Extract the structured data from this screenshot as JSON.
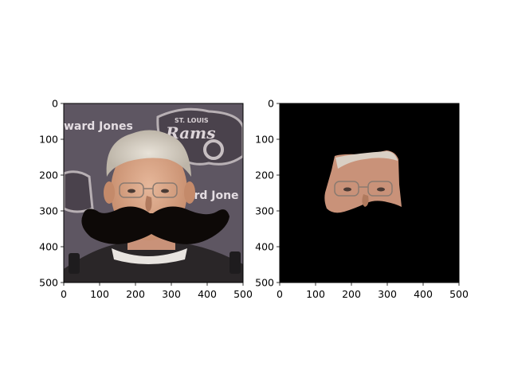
{
  "chart_data": [
    {
      "type": "image",
      "title": "",
      "xlabel": "",
      "ylabel": "",
      "xlim": [
        0,
        500
      ],
      "ylim": [
        500,
        0
      ],
      "xticks": [
        0,
        100,
        200,
        300,
        400,
        500
      ],
      "yticks": [
        0,
        100,
        200,
        300,
        400,
        500
      ],
      "grid": false,
      "content": "portrait photo with black mustache overlay",
      "photo_text": [
        "ward Jones",
        "ST. LOUIS",
        "Rams",
        "ard Jone"
      ]
    },
    {
      "type": "image",
      "title": "",
      "xlabel": "",
      "ylabel": "",
      "xlim": [
        0,
        500
      ],
      "ylim": [
        500,
        0
      ],
      "xticks": [
        0,
        100,
        200,
        300,
        400,
        500
      ],
      "yticks": [
        0,
        100,
        200,
        300,
        400,
        500
      ],
      "grid": false,
      "content": "masked face region on black background"
    }
  ],
  "colors": {
    "mustache": "#0d0907",
    "background_mask": "#000000",
    "photo_bg": "#5e5662"
  }
}
